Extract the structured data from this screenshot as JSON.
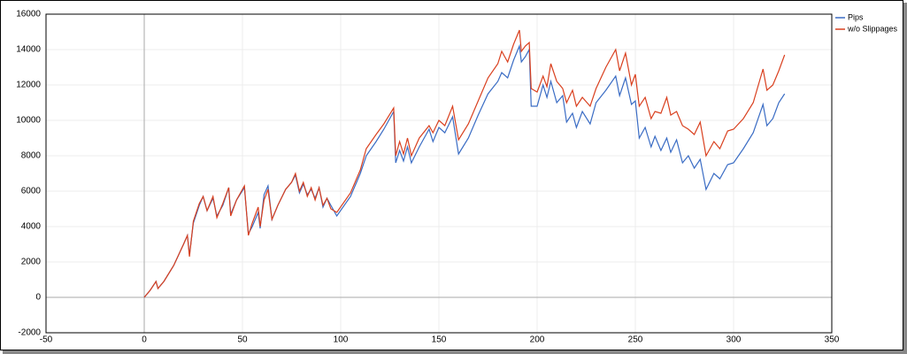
{
  "chart_data": {
    "type": "line",
    "x": [
      0,
      3,
      6,
      7,
      10,
      15,
      20,
      22,
      23,
      25,
      28,
      30,
      32,
      35,
      37,
      40,
      43,
      44,
      47,
      51,
      53,
      55,
      58,
      59,
      61,
      63,
      65,
      68,
      72,
      75,
      77,
      79,
      81,
      83,
      85,
      87,
      89,
      91,
      93,
      95,
      98,
      105,
      110,
      113,
      118,
      122,
      127,
      128,
      130,
      132,
      134,
      136,
      140,
      145,
      147,
      150,
      153,
      157,
      160,
      165,
      170,
      175,
      180,
      182,
      185,
      188,
      191,
      192,
      194,
      196,
      197,
      200,
      203,
      205,
      207,
      210,
      213,
      215,
      218,
      220,
      223,
      227,
      230,
      235,
      240,
      242,
      245,
      248,
      250,
      252,
      255,
      258,
      260,
      263,
      266,
      268,
      271,
      274,
      277,
      280,
      283,
      286,
      290,
      293,
      297,
      300,
      305,
      310,
      315,
      317,
      320,
      323,
      326
    ],
    "series": [
      {
        "name": "Pips",
        "color": "#3a6cc4",
        "values": [
          0,
          400,
          900,
          500,
          900,
          1800,
          3000,
          3500,
          2400,
          4200,
          5200,
          5700,
          4900,
          5600,
          4600,
          5200,
          6200,
          4700,
          5500,
          6200,
          3600,
          4000,
          4800,
          3900,
          5800,
          6300,
          4400,
          5200,
          6100,
          6500,
          6900,
          5900,
          6400,
          5800,
          6100,
          5600,
          6200,
          5100,
          5600,
          5200,
          4600,
          5700,
          7000,
          8000,
          8800,
          9500,
          10500,
          7600,
          8300,
          7700,
          8500,
          7600,
          8500,
          9500,
          8800,
          9600,
          9300,
          10200,
          8100,
          9000,
          10300,
          11500,
          12200,
          12700,
          12400,
          13400,
          14200,
          13300,
          13600,
          14000,
          10800,
          10800,
          12000,
          11300,
          12200,
          11000,
          11400,
          9900,
          10400,
          9600,
          10500,
          9800,
          11000,
          11700,
          12500,
          11400,
          12400,
          10900,
          11100,
          9000,
          9600,
          8500,
          9100,
          8300,
          9000,
          8200,
          8900,
          7600,
          8000,
          7300,
          7800,
          6100,
          7000,
          6700,
          7500,
          7600,
          8400,
          9300,
          10900,
          9700,
          10100,
          11000,
          11500
        ]
      },
      {
        "name": "w/o Slippages",
        "color": "#d9401f",
        "values": [
          0,
          400,
          900,
          500,
          900,
          1800,
          3000,
          3500,
          2300,
          4300,
          5300,
          5700,
          4900,
          5700,
          4500,
          5300,
          6200,
          4600,
          5500,
          6300,
          3500,
          4200,
          5100,
          4000,
          5500,
          6100,
          4400,
          5200,
          6100,
          6500,
          7000,
          6000,
          6500,
          5700,
          6200,
          5500,
          6200,
          5200,
          5600,
          5000,
          4800,
          5900,
          7200,
          8400,
          9200,
          9800,
          10700,
          8000,
          8800,
          8100,
          9000,
          8000,
          9000,
          9700,
          9300,
          10000,
          9700,
          10800,
          8900,
          9800,
          11100,
          12400,
          13200,
          13900,
          13300,
          14300,
          15100,
          13900,
          14200,
          14400,
          11800,
          11600,
          12500,
          11900,
          13200,
          12200,
          11800,
          11000,
          11700,
          10800,
          11300,
          10800,
          11800,
          13000,
          14000,
          12800,
          13800,
          12000,
          12600,
          10800,
          11300,
          10100,
          10500,
          10400,
          11300,
          10300,
          10500,
          9700,
          9500,
          9200,
          9900,
          8000,
          8800,
          8400,
          9400,
          9500,
          10100,
          11000,
          12900,
          11700,
          12000,
          12800,
          13700
        ]
      }
    ],
    "xlim": [
      -50,
      350
    ],
    "xticks": [
      -50,
      0,
      50,
      100,
      150,
      200,
      250,
      300,
      350
    ],
    "ylim": [
      -2000,
      16000
    ],
    "yticks": [
      -2000,
      0,
      2000,
      4000,
      6000,
      8000,
      10000,
      12000,
      14000,
      16000
    ],
    "grid": true
  }
}
